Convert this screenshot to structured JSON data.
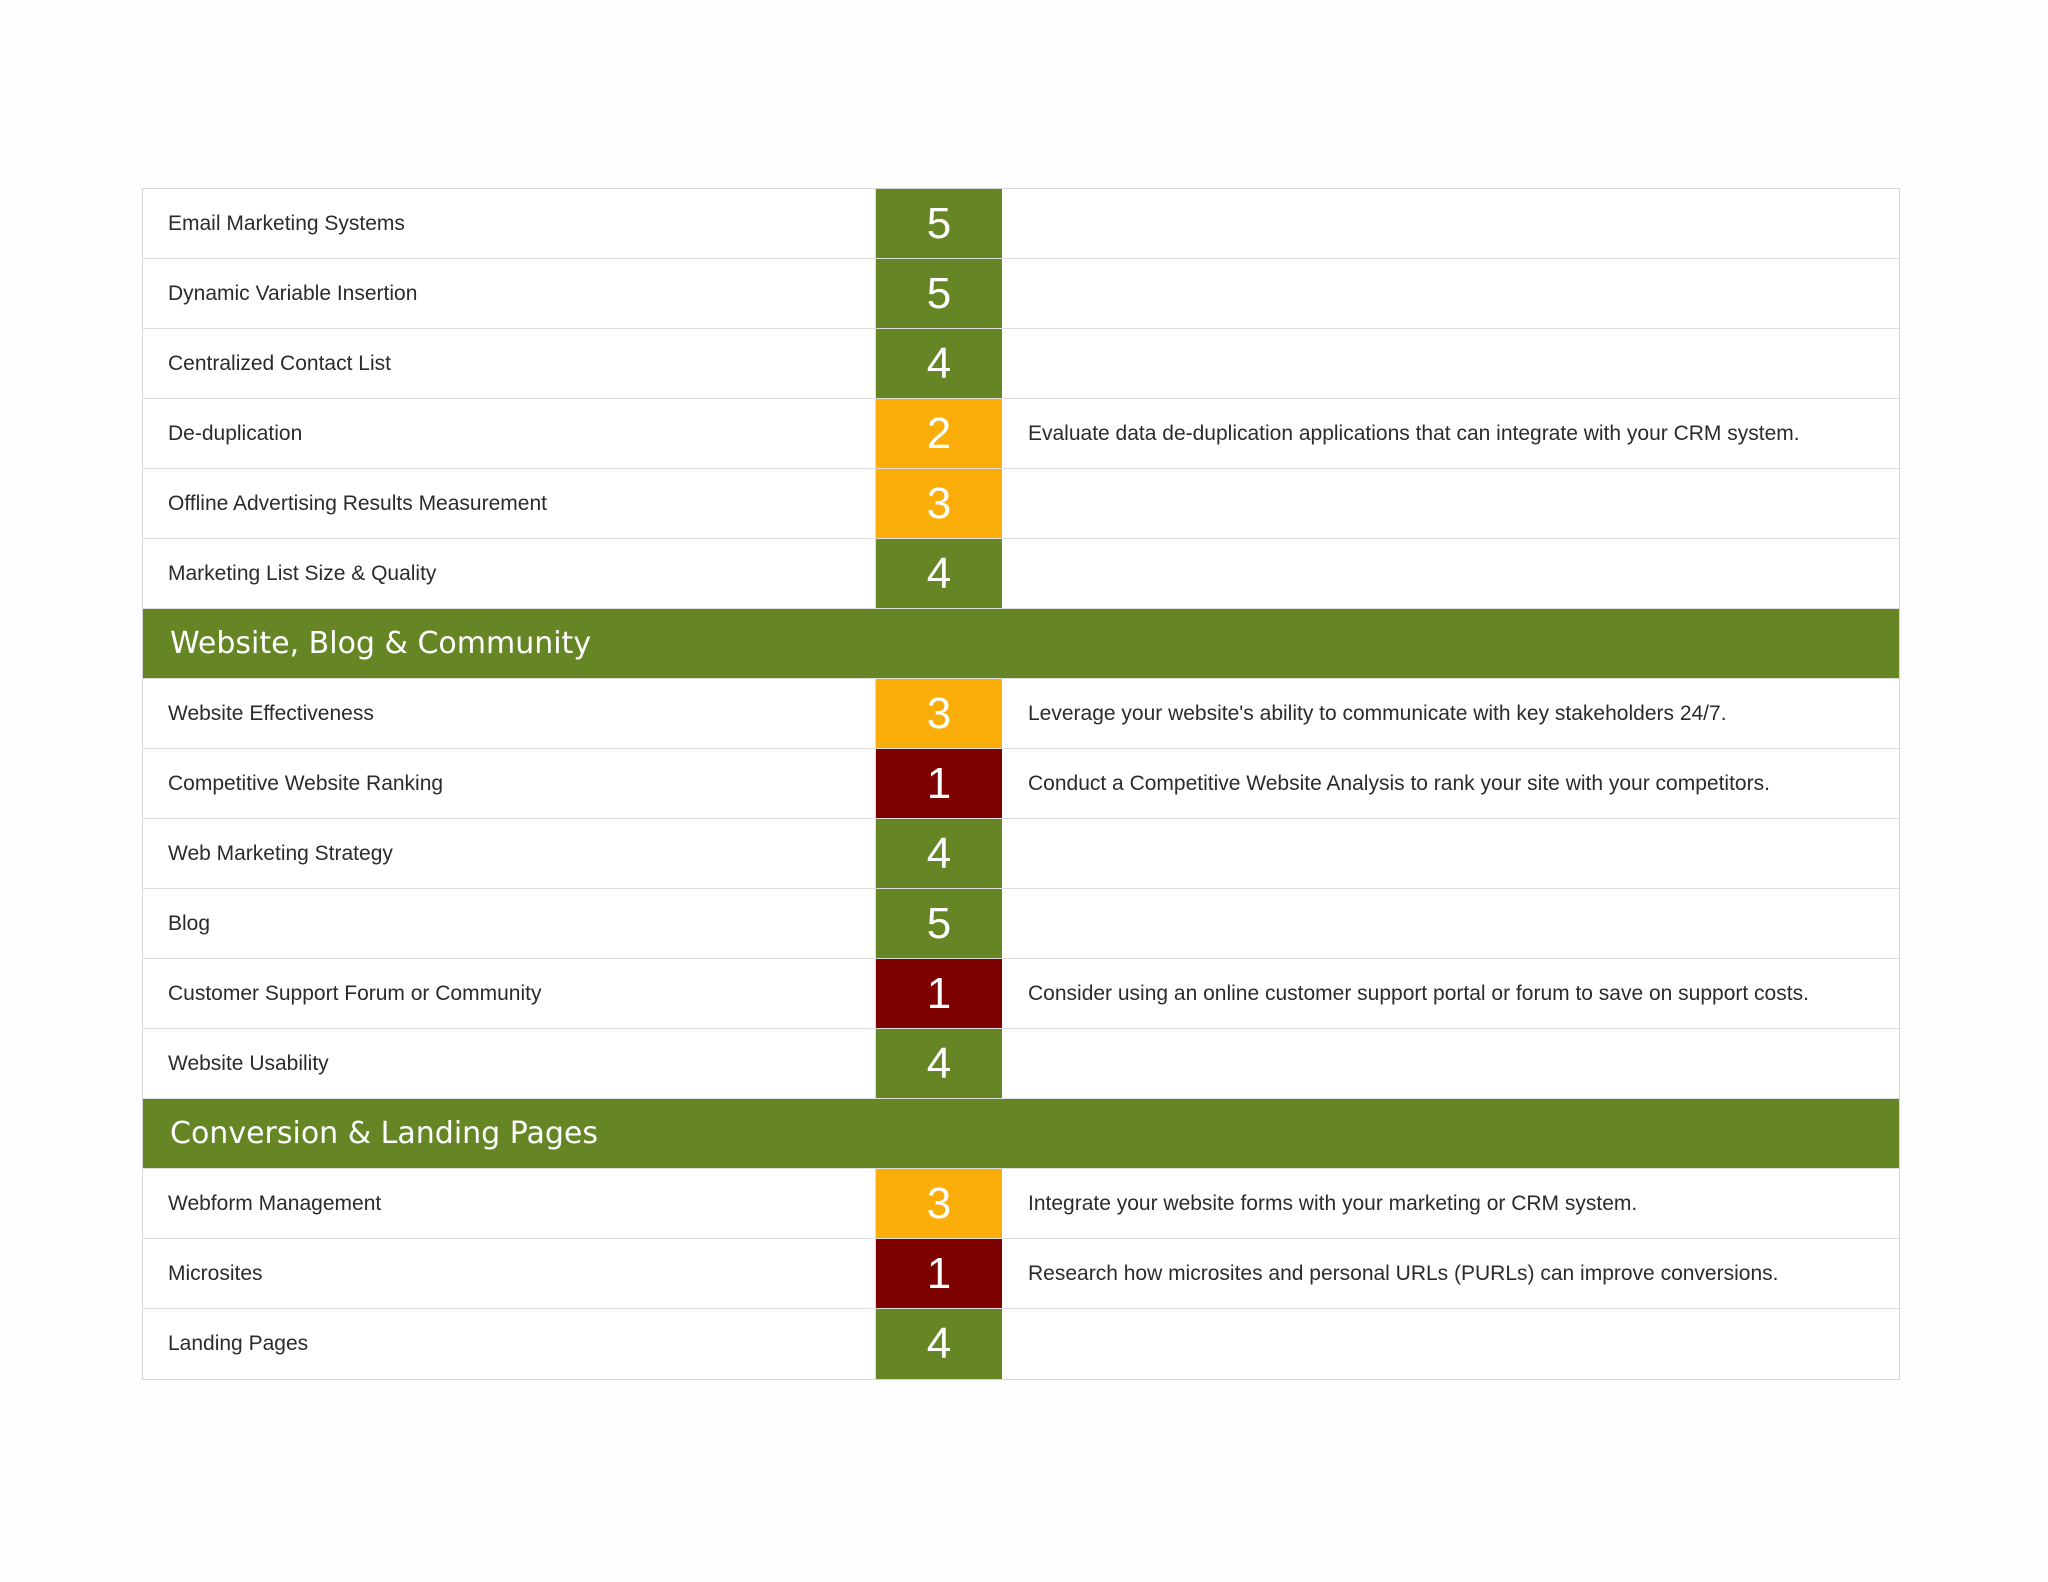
{
  "colors": {
    "5": "#668525",
    "4": "#668525",
    "3": "#fbae09",
    "2": "#fbae09",
    "1": "#7e0101",
    "section_header": "#668525"
  },
  "rows": [
    {
      "type": "item",
      "name": "Email Marketing Systems",
      "score": "5",
      "note": ""
    },
    {
      "type": "item",
      "name": "Dynamic Variable Insertion",
      "score": "5",
      "note": ""
    },
    {
      "type": "item",
      "name": "Centralized Contact List",
      "score": "4",
      "note": ""
    },
    {
      "type": "item",
      "name": "De-duplication",
      "score": "2",
      "note": "Evaluate data de-duplication applications that can integrate with your CRM system."
    },
    {
      "type": "item",
      "name": "Offline Advertising Results Measurement",
      "score": "3",
      "note": ""
    },
    {
      "type": "item",
      "name": "Marketing List Size & Quality",
      "score": "4",
      "note": ""
    },
    {
      "type": "section",
      "title": "Website, Blog & Community"
    },
    {
      "type": "item",
      "name": "Website Effectiveness",
      "score": "3",
      "note": "Leverage your website's ability to communicate with key stakeholders 24/7."
    },
    {
      "type": "item",
      "name": "Competitive Website Ranking",
      "score": "1",
      "note": "Conduct a Competitive Website Analysis to rank your site with your competitors."
    },
    {
      "type": "item",
      "name": "Web Marketing Strategy",
      "score": "4",
      "note": ""
    },
    {
      "type": "item",
      "name": "Blog",
      "score": "5",
      "note": ""
    },
    {
      "type": "item",
      "name": "Customer Support Forum or Community",
      "score": "1",
      "note": "Consider using an online customer support portal or forum to save on support costs."
    },
    {
      "type": "item",
      "name": "Website Usability",
      "score": "4",
      "note": ""
    },
    {
      "type": "section",
      "title": "Conversion & Landing Pages"
    },
    {
      "type": "item",
      "name": "Webform Management",
      "score": "3",
      "note": "Integrate your website forms with your marketing or CRM system."
    },
    {
      "type": "item",
      "name": "Microsites",
      "score": "1",
      "note": "Research how microsites and personal URLs (PURLs) can improve conversions."
    },
    {
      "type": "item",
      "name": "Landing Pages",
      "score": "4",
      "note": ""
    }
  ]
}
